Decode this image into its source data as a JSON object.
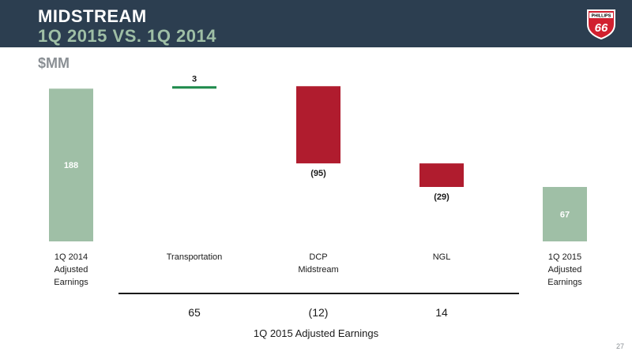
{
  "header": {
    "title": "MIDSTREAM",
    "subtitle": "1Q 2015 VS. 1Q 2014",
    "logo_text": "PHILLIPS 66"
  },
  "unit_label": "$MM",
  "page_number": "27",
  "colors": {
    "header_bg": "#2c3e50",
    "subtitle": "#9fbfa6",
    "total_bar": "#9fbfa6",
    "increase_bar": "#1e8a4c",
    "decrease_bar": "#b01c2e",
    "logo_red": "#d1202f"
  },
  "chart_data": {
    "type": "bar",
    "subtype": "waterfall",
    "categories": [
      [
        "1Q 2014",
        "Adjusted",
        "Earnings"
      ],
      [
        "Transportation"
      ],
      [
        "DCP",
        "Midstream"
      ],
      [
        "NGL"
      ],
      [
        "1Q 2015",
        "Adjusted",
        "Earnings"
      ]
    ],
    "values": [
      188,
      3,
      -95,
      -29,
      67
    ],
    "data_labels": [
      "188",
      "3",
      "(95)",
      "(29)",
      "67"
    ],
    "kinds": [
      "total",
      "increase",
      "decrease",
      "decrease",
      "total"
    ],
    "ylim": [
      0,
      200
    ],
    "grid": false,
    "legend": "none",
    "breakdown": {
      "title": "1Q 2015 Adjusted Earnings",
      "values": [
        "65",
        "(12)",
        "14"
      ]
    }
  }
}
